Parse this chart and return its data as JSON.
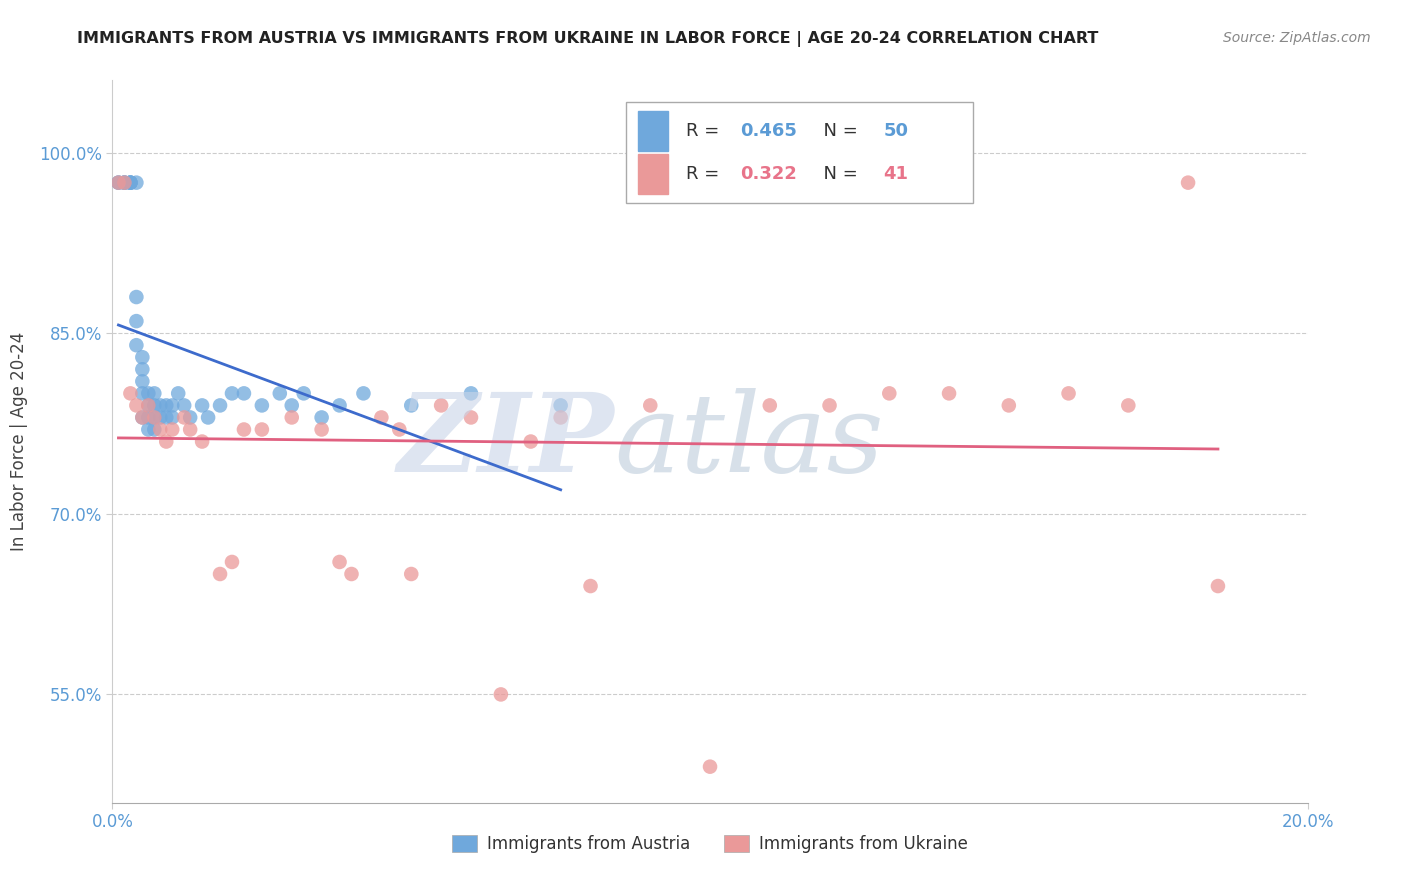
{
  "title": "IMMIGRANTS FROM AUSTRIA VS IMMIGRANTS FROM UKRAINE IN LABOR FORCE | AGE 20-24 CORRELATION CHART",
  "source": "Source: ZipAtlas.com",
  "ylabel": "In Labor Force | Age 20-24",
  "xlim": [
    0.0,
    0.2
  ],
  "ylim": [
    0.46,
    1.06
  ],
  "ytick_labels": [
    "55.0%",
    "70.0%",
    "85.0%",
    "100.0%"
  ],
  "ytick_values": [
    0.55,
    0.7,
    0.85,
    1.0
  ],
  "xtick_labels": [
    "0.0%",
    "20.0%"
  ],
  "xtick_values": [
    0.0,
    0.2
  ],
  "austria_R": 0.465,
  "austria_N": 50,
  "ukraine_R": 0.322,
  "ukraine_N": 41,
  "austria_color": "#6fa8dc",
  "ukraine_color": "#ea9999",
  "austria_line_color": "#3d6bcc",
  "ukraine_line_color": "#e06080",
  "austria_x": [
    0.001,
    0.001,
    0.002,
    0.002,
    0.002,
    0.003,
    0.003,
    0.003,
    0.003,
    0.004,
    0.004,
    0.004,
    0.004,
    0.005,
    0.005,
    0.005,
    0.005,
    0.005,
    0.006,
    0.006,
    0.006,
    0.006,
    0.007,
    0.007,
    0.007,
    0.007,
    0.008,
    0.008,
    0.009,
    0.009,
    0.01,
    0.01,
    0.011,
    0.012,
    0.013,
    0.015,
    0.016,
    0.018,
    0.02,
    0.022,
    0.025,
    0.028,
    0.03,
    0.032,
    0.035,
    0.038,
    0.042,
    0.05,
    0.06,
    0.075
  ],
  "austria_y": [
    0.975,
    0.975,
    0.975,
    0.975,
    0.975,
    0.975,
    0.975,
    0.975,
    0.975,
    0.975,
    0.88,
    0.86,
    0.84,
    0.83,
    0.82,
    0.81,
    0.8,
    0.78,
    0.8,
    0.79,
    0.78,
    0.77,
    0.8,
    0.79,
    0.78,
    0.77,
    0.79,
    0.78,
    0.79,
    0.78,
    0.79,
    0.78,
    0.8,
    0.79,
    0.78,
    0.79,
    0.78,
    0.79,
    0.8,
    0.8,
    0.79,
    0.8,
    0.79,
    0.8,
    0.78,
    0.79,
    0.8,
    0.79,
    0.8,
    0.79
  ],
  "ukraine_x": [
    0.001,
    0.002,
    0.003,
    0.004,
    0.005,
    0.006,
    0.007,
    0.008,
    0.009,
    0.01,
    0.012,
    0.013,
    0.015,
    0.018,
    0.02,
    0.022,
    0.025,
    0.03,
    0.035,
    0.038,
    0.04,
    0.045,
    0.048,
    0.05,
    0.055,
    0.06,
    0.065,
    0.07,
    0.075,
    0.08,
    0.09,
    0.1,
    0.11,
    0.12,
    0.13,
    0.14,
    0.15,
    0.16,
    0.17,
    0.18,
    0.185
  ],
  "ukraine_y": [
    0.975,
    0.975,
    0.8,
    0.79,
    0.78,
    0.79,
    0.78,
    0.77,
    0.76,
    0.77,
    0.78,
    0.77,
    0.76,
    0.65,
    0.66,
    0.77,
    0.77,
    0.78,
    0.77,
    0.66,
    0.65,
    0.78,
    0.77,
    0.65,
    0.79,
    0.78,
    0.55,
    0.76,
    0.78,
    0.64,
    0.79,
    0.49,
    0.79,
    0.79,
    0.8,
    0.8,
    0.79,
    0.8,
    0.79,
    0.975,
    0.64
  ],
  "legend_austria_line": "R = 0.465   N = 50",
  "legend_ukraine_line": "R = 0.322   N = 41",
  "bottom_legend_austria": "Immigrants from Austria",
  "bottom_legend_ukraine": "Immigrants from Ukraine"
}
